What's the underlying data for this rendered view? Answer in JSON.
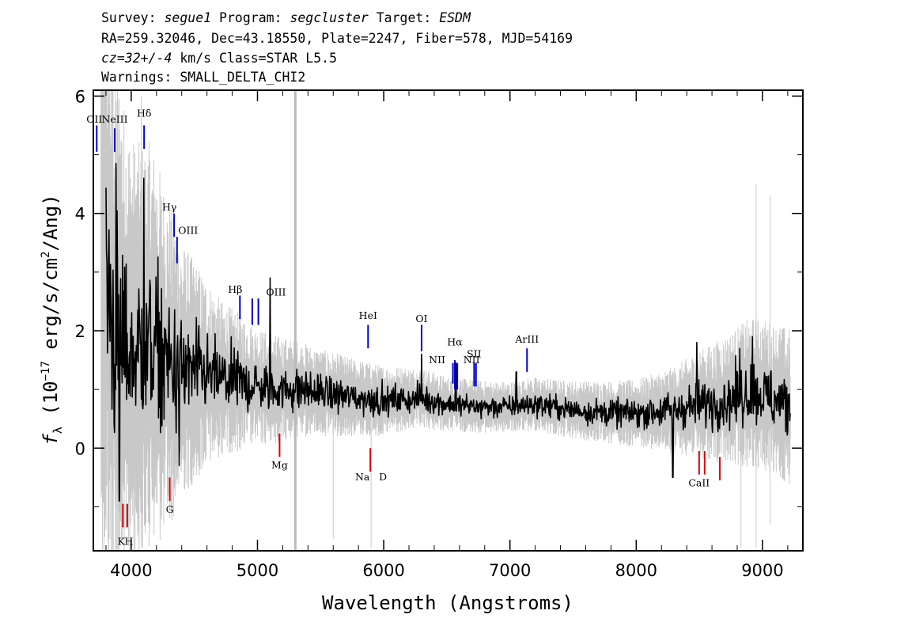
{
  "header": {
    "line1": {
      "survey_label": "Survey: ",
      "survey": "segue1",
      "program_label": " Program: ",
      "program": "segcluster",
      "target_label": " Target: ",
      "target": "ESDM"
    },
    "line2": "RA=259.32046, Dec=43.18550, Plate=2247, Fiber=578, MJD=54169",
    "line3": {
      "cz": "cz=32+/-4",
      "rest": " km/s Class=STAR L5.5"
    },
    "line4": "Warnings: SMALL_DELTA_CHI2"
  },
  "colors": {
    "flux": "#000000",
    "error_envelope": "#c8c8c8",
    "emission_marker": "#0000cc",
    "absorption_marker": "#dd0000",
    "frame": "#000000"
  },
  "chart_data": {
    "type": "line",
    "xlabel": "Wavelength (Angstroms)",
    "ylabel": "f_λ (10^-17 erg/s/cm^2/Ang)",
    "ylabel_parts": {
      "f": "f",
      "lambda": "λ",
      "open": " (10",
      "exp1": "−17",
      "mid": " erg/s/cm",
      "exp2": "2",
      "close": "/Ang)"
    },
    "xlim": [
      3700,
      9320
    ],
    "ylim": [
      -1.75,
      6.1
    ],
    "x_ticks": [
      4000,
      5000,
      6000,
      7000,
      8000,
      9000
    ],
    "y_ticks": [
      0,
      2,
      4,
      6
    ],
    "x_tick_labels": [
      "4000",
      "5000",
      "6000",
      "7000",
      "8000",
      "9000"
    ],
    "y_tick_labels": [
      "0",
      "2",
      "4",
      "6"
    ],
    "vertical_reference_line_x": 5300,
    "series": [
      {
        "role": "flux",
        "x_range": [
          3800,
          9220
        ],
        "continuum_anchors": [
          [
            3800,
            3.2
          ],
          [
            3850,
            2.2
          ],
          [
            3950,
            1.7
          ],
          [
            4050,
            1.6
          ],
          [
            4150,
            1.8
          ],
          [
            4250,
            1.5
          ],
          [
            4350,
            1.35
          ],
          [
            4500,
            1.3
          ],
          [
            4700,
            1.2
          ],
          [
            4900,
            1.1
          ],
          [
            5100,
            1.0
          ],
          [
            5300,
            1.0
          ],
          [
            5500,
            0.95
          ],
          [
            5800,
            0.85
          ],
          [
            6000,
            0.8
          ],
          [
            6300,
            0.85
          ],
          [
            6500,
            0.75
          ],
          [
            6800,
            0.7
          ],
          [
            7000,
            0.7
          ],
          [
            7200,
            0.75
          ],
          [
            7500,
            0.65
          ],
          [
            7800,
            0.6
          ],
          [
            8000,
            0.6
          ],
          [
            8300,
            0.65
          ],
          [
            8500,
            0.75
          ],
          [
            8700,
            0.8
          ],
          [
            8900,
            0.95
          ],
          [
            9000,
            0.9
          ],
          [
            9220,
            0.7
          ]
        ],
        "noise_anchors": [
          [
            3800,
            1.6
          ],
          [
            4000,
            1.1
          ],
          [
            4200,
            1.0
          ],
          [
            4400,
            0.65
          ],
          [
            4700,
            0.4
          ],
          [
            5000,
            0.3
          ],
          [
            5500,
            0.22
          ],
          [
            6000,
            0.18
          ],
          [
            6500,
            0.14
          ],
          [
            7000,
            0.13
          ],
          [
            7500,
            0.15
          ],
          [
            8000,
            0.17
          ],
          [
            8300,
            0.22
          ],
          [
            8600,
            0.3
          ],
          [
            8900,
            0.38
          ],
          [
            9220,
            0.4
          ]
        ],
        "features": [
          {
            "x": 3880,
            "y": 4.85
          },
          {
            "x": 3905,
            "y": -0.9
          },
          {
            "x": 4100,
            "y": 4.6
          },
          {
            "x": 4380,
            "y": -0.3
          },
          {
            "x": 5100,
            "y": 2.9
          },
          {
            "x": 6300,
            "y": 1.6
          },
          {
            "x": 6570,
            "y": 1.45
          },
          {
            "x": 7050,
            "y": 1.3
          },
          {
            "x": 8290,
            "y": -0.5
          },
          {
            "x": 8480,
            "y": 1.8
          },
          {
            "x": 8820,
            "y": 1.7
          },
          {
            "x": 8920,
            "y": 1.9
          }
        ]
      },
      {
        "role": "error_envelope",
        "x_range": [
          3760,
          9220
        ]
      }
    ],
    "line_markers": [
      {
        "label": "OII",
        "x": 3727,
        "y0": 5.05,
        "y1": 5.5,
        "label_y": 5.55,
        "label_dx": -3,
        "kind": "emission"
      },
      {
        "label": "NeIII",
        "x": 3869,
        "y0": 5.05,
        "y1": 5.45,
        "label_y": 5.55,
        "label_dx": 0,
        "kind": "emission"
      },
      {
        "label": "Hδ",
        "x": 4102,
        "y0": 5.1,
        "y1": 5.5,
        "label_y": 5.65,
        "label_dx": 0,
        "kind": "emission"
      },
      {
        "label": "Hγ",
        "x": 4340,
        "y0": 3.6,
        "y1": 4.0,
        "label_y": 4.05,
        "label_dx": -6,
        "kind": "emission"
      },
      {
        "label": "OIII",
        "x": 4363,
        "y0": 3.15,
        "y1": 3.6,
        "label_y": 3.65,
        "label_dx": 14,
        "kind": "emission"
      },
      {
        "label": "Hβ",
        "x": 4861,
        "y0": 2.2,
        "y1": 2.6,
        "label_y": 2.65,
        "label_dx": -6,
        "kind": "emission"
      },
      {
        "label": "OIII",
        "x": 4959,
        "y0": 2.1,
        "y1": 2.55,
        "label_y": 2.6,
        "label_dx": 30,
        "kind": "emission"
      },
      {
        "label": "OIII",
        "x": 5007,
        "y0": 2.1,
        "y1": 2.55,
        "label_y": 2.6,
        "label_dx": 0,
        "kind": "hidden"
      },
      {
        "label": "HeI",
        "x": 5876,
        "y0": 1.7,
        "y1": 2.1,
        "label_y": 2.2,
        "label_dx": 0,
        "kind": "emission"
      },
      {
        "label": "OI",
        "x": 6300,
        "y0": 1.65,
        "y1": 2.1,
        "label_y": 2.15,
        "label_dx": 0,
        "kind": "emission"
      },
      {
        "label": "NII",
        "x": 6548,
        "y0": 1.1,
        "y1": 1.45,
        "label_y": 1.45,
        "label_dx": -20,
        "kind": "emission"
      },
      {
        "label": "Hα",
        "x": 6563,
        "y0": 1.0,
        "y1": 1.5,
        "label_y": 1.75,
        "label_dx": 0,
        "kind": "emission"
      },
      {
        "label": "NII",
        "x": 6583,
        "y0": 1.0,
        "y1": 1.45,
        "label_y": 1.45,
        "label_dx": 18,
        "kind": "emission"
      },
      {
        "label": "SII",
        "x": 6716,
        "y0": 1.05,
        "y1": 1.45,
        "label_y": 1.55,
        "label_dx": 0,
        "kind": "emission"
      },
      {
        "label": "SII",
        "x": 6731,
        "y0": 1.05,
        "y1": 1.45,
        "label_y": 1.55,
        "label_dx": 0,
        "kind": "hidden"
      },
      {
        "label": "ArIII",
        "x": 7135,
        "y0": 1.3,
        "y1": 1.7,
        "label_y": 1.8,
        "label_dx": 0,
        "kind": "emission"
      },
      {
        "label": "K",
        "x": 3934,
        "y0": -1.35,
        "y1": -0.95,
        "label_y": -1.65,
        "label_dx": -2,
        "kind": "absorption"
      },
      {
        "label": "H",
        "x": 3969,
        "y0": -1.35,
        "y1": -0.95,
        "label_y": -1.65,
        "label_dx": 2,
        "kind": "absorption"
      },
      {
        "label": "G",
        "x": 4305,
        "y0": -0.9,
        "y1": -0.5,
        "label_y": -1.1,
        "label_dx": 0,
        "kind": "absorption"
      },
      {
        "label": "Mg",
        "x": 5175,
        "y0": -0.15,
        "y1": 0.25,
        "label_y": -0.35,
        "label_dx": 0,
        "kind": "absorption"
      },
      {
        "label": "Na",
        "x": 5894,
        "y0": -0.4,
        "y1": 0.0,
        "label_y": -0.55,
        "label_dx": -10,
        "kind": "absorption"
      },
      {
        "label": "D",
        "x": 5894,
        "y0": -0.4,
        "y1": 0.0,
        "label_y": -0.55,
        "label_dx": 16,
        "kind": "absorption-label"
      },
      {
        "label": "CaII",
        "x": 8498,
        "y0": -0.45,
        "y1": -0.05,
        "label_y": -0.65,
        "label_dx": 0,
        "kind": "absorption"
      },
      {
        "label": "CaII",
        "x": 8542,
        "y0": -0.45,
        "y1": -0.05,
        "label_y": 0,
        "label_dx": 0,
        "kind": "hidden-absorption"
      },
      {
        "label": "CaII",
        "x": 8662,
        "y0": -0.55,
        "y1": -0.15,
        "label_y": 0,
        "label_dx": 0,
        "kind": "hidden-absorption"
      }
    ]
  }
}
